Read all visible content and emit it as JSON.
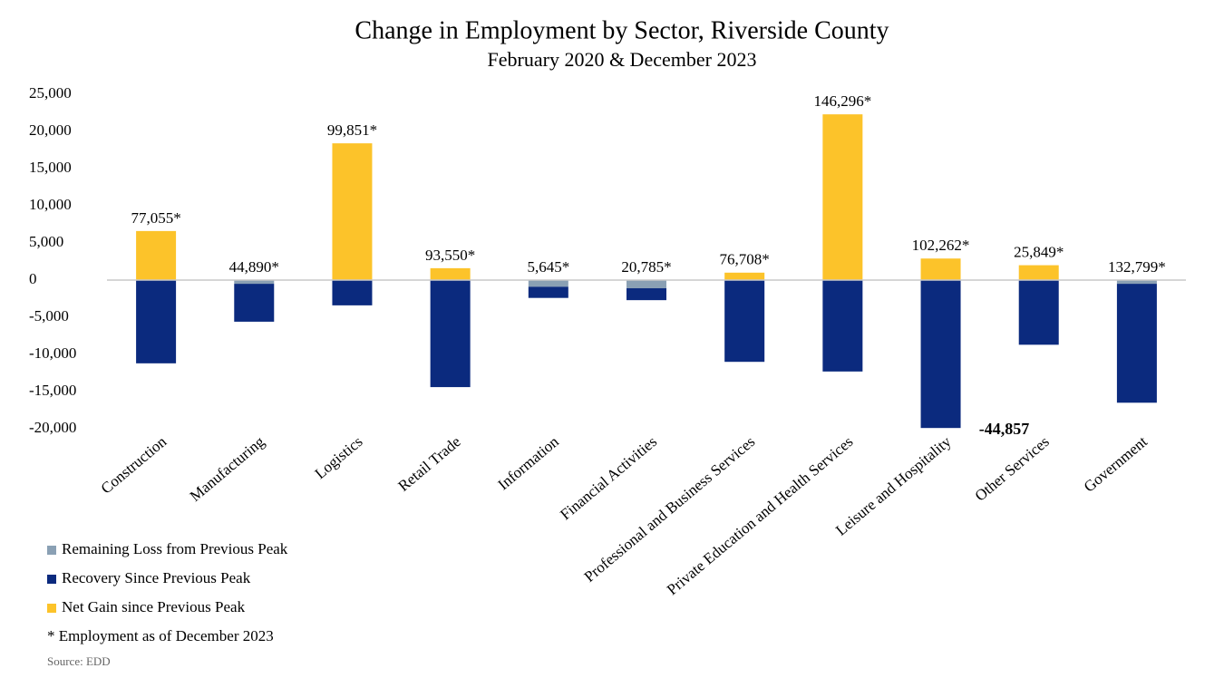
{
  "chart_data": {
    "type": "bar",
    "stacked": true,
    "title": "Change in Employment by Sector, Riverside County",
    "subtitle": "February 2020 & December 2023",
    "categories": [
      "Construction",
      "Manufacturing",
      "Logistics",
      "Retail Trade",
      "Information",
      "Financial Activities",
      "Professional and Business Services",
      "Private Education and Health Services",
      "Leisure and Hospitality",
      "Other Services",
      "Government"
    ],
    "series": [
      {
        "name": "Remaining Loss from Previous Peak",
        "color": "#8aa0b4",
        "values": [
          0,
          -500,
          0,
          0,
          -900,
          -1100,
          0,
          0,
          0,
          0,
          -500
        ]
      },
      {
        "name": "Recovery Since Previous Peak",
        "color": "#0b2a7e",
        "values": [
          -11200,
          -5100,
          -3400,
          -14400,
          -1500,
          -1600,
          -11000,
          -12300,
          -19900,
          -8700,
          -16000
        ]
      },
      {
        "name": "Net Gain since Previous Peak",
        "color": "#fcc32a",
        "values": [
          6600,
          0,
          18400,
          1600,
          0,
          0,
          1000,
          22300,
          2900,
          2000,
          0
        ]
      }
    ],
    "employment_labels": [
      "77,055*",
      "44,890*",
      "99,851*",
      "93,550*",
      "5,645*",
      "20,785*",
      "76,708*",
      "146,296*",
      "102,262*",
      "25,849*",
      "132,799*"
    ],
    "annotation": "-44,857",
    "note": "* Employment as of December 2023",
    "source": "Source: EDD",
    "ylim": [
      -20000,
      25000
    ],
    "yticks": [
      {
        "value": -20000,
        "label": "-20,000"
      },
      {
        "value": -15000,
        "label": "-15,000"
      },
      {
        "value": -10000,
        "label": "-10,000"
      },
      {
        "value": -5000,
        "label": "-5,000"
      },
      0,
      {
        "value": 5000,
        "label": "5,000"
      },
      {
        "value": 10000,
        "label": "10,000"
      },
      {
        "value": 15000,
        "label": "15,000"
      },
      {
        "value": 20000,
        "label": "20,000"
      },
      {
        "value": 25000,
        "label": "25,000"
      }
    ],
    "grid": false
  }
}
